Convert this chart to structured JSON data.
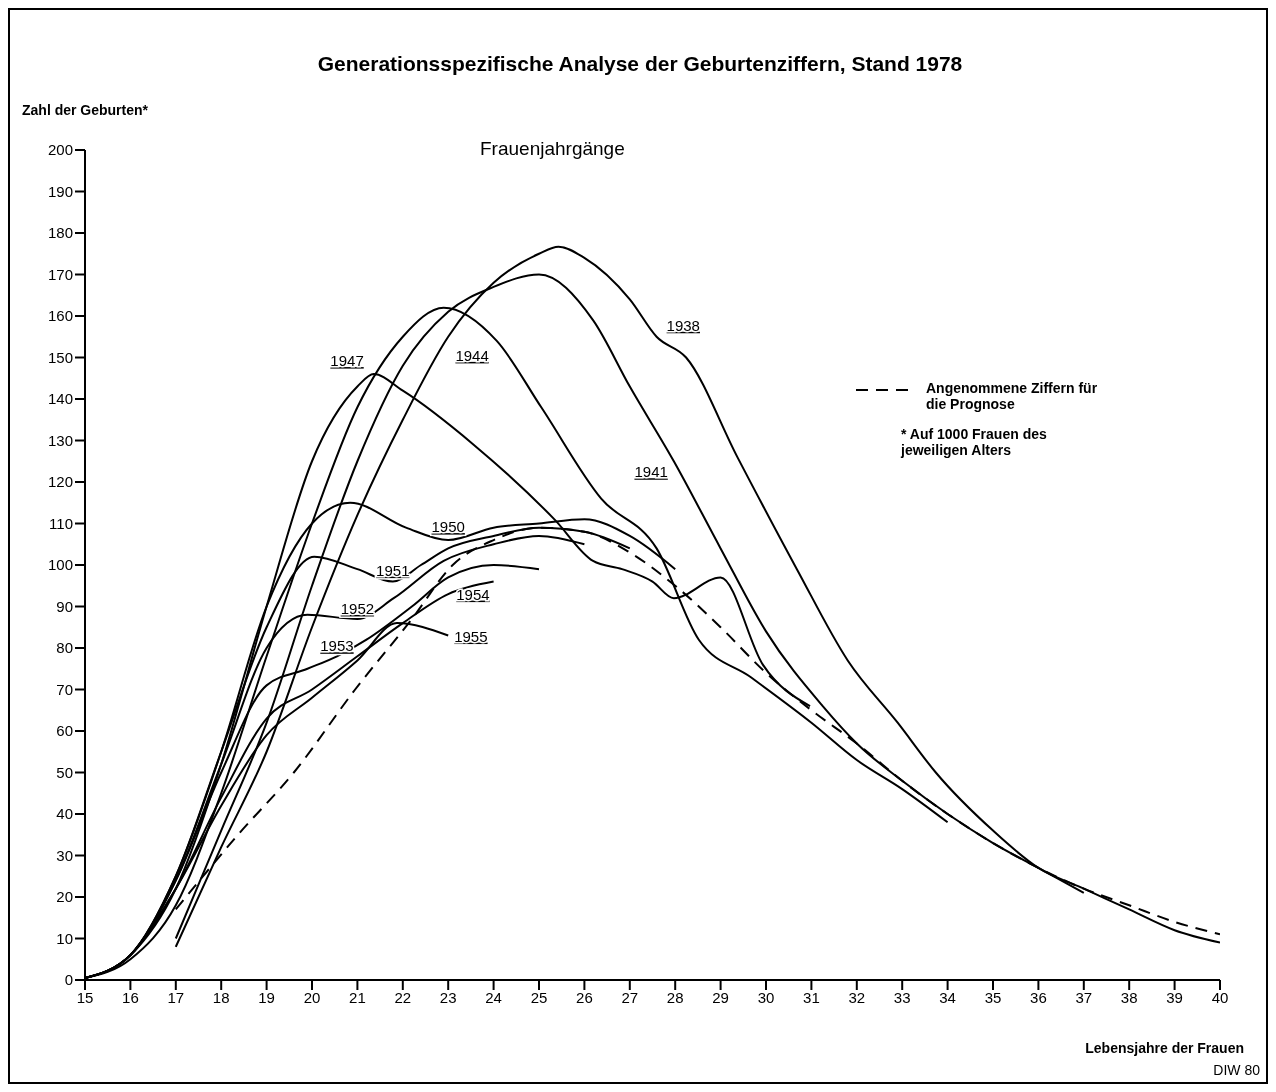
{
  "chart_data": {
    "type": "line",
    "title": "Generationsspezifische Analyse der Geburtenziffern, Stand 1978",
    "ylabel": "Zahl der Geburten*",
    "xlabel": "Lebensjahre der Frauen",
    "legend_title": "Frauenjahrgänge",
    "legend": "top right",
    "line_style": "solid",
    "marker": "none",
    "grid": false,
    "xlim": [
      15,
      40
    ],
    "xticks": [
      15,
      16,
      17,
      18,
      19,
      20,
      21,
      22,
      23,
      24,
      25,
      26,
      27,
      28,
      29,
      30,
      31,
      32,
      33,
      34,
      35,
      36,
      37,
      38,
      39,
      40
    ],
    "ylim": [
      0,
      200
    ],
    "yticks": [
      0,
      10,
      20,
      30,
      40,
      50,
      60,
      70,
      80,
      90,
      100,
      110,
      120,
      130,
      140,
      150,
      160,
      170,
      180,
      190,
      200
    ],
    "series": [
      {
        "name": "1938",
        "color": "#000000",
        "x": [
          17,
          18,
          19,
          20,
          21,
          22,
          23,
          24,
          25,
          25.43,
          26,
          27,
          27.59,
          28.24,
          29.37,
          30.68,
          31.8,
          32.9,
          33.74,
          35,
          36,
          37,
          38,
          39,
          40
        ],
        "values": [
          8,
          32,
          55,
          85,
          112,
          135,
          155,
          168,
          175,
          176.7,
          174,
          164,
          155,
          150,
          126,
          99,
          77,
          62,
          50,
          36,
          27,
          22,
          17,
          12,
          9
        ]
      },
      {
        "name": "1941",
        "color": "#000000",
        "x": [
          17,
          18,
          19,
          20,
          21,
          22,
          23,
          24,
          25,
          26.19,
          27,
          27.97,
          29,
          30,
          31.25,
          32,
          33,
          34,
          35,
          36,
          37
        ],
        "values": [
          10,
          36,
          62,
          95,
          125,
          148,
          161,
          167,
          170,
          159,
          143,
          125,
          104,
          84,
          66,
          57,
          48,
          40,
          33,
          27,
          21
        ]
      },
      {
        "name": "1944",
        "color": "#000000",
        "x": [
          15,
          16,
          17,
          18,
          19,
          20,
          21,
          22,
          22.9,
          24.07,
          25.05,
          26.37,
          27.59,
          28.52,
          29.66,
          31,
          32,
          33,
          34
        ],
        "values": [
          0.5,
          5,
          18,
          45,
          78,
          110,
          138,
          155,
          162,
          154,
          138,
          116,
          104,
          82,
          73,
          62,
          53,
          46,
          38
        ]
      },
      {
        "name": "1947",
        "color": "#000000",
        "x": [
          15,
          16,
          17,
          18,
          19,
          20,
          21,
          21.36,
          22,
          23.56,
          25.34,
          26.19,
          26.83,
          27.5,
          27.97,
          29,
          29.93,
          30.97
        ],
        "values": [
          0.5,
          6,
          22,
          52,
          90,
          125,
          143,
          146,
          142,
          129,
          111,
          101,
          99,
          96,
          92,
          97,
          76,
          66
        ]
      },
      {
        "name": "1950",
        "color": "#000000",
        "x": [
          15,
          16,
          17,
          18,
          19,
          20,
          20.84,
          22.07,
          23,
          24,
          25,
          26,
          27,
          28
        ],
        "values": [
          0.5,
          6,
          25,
          55,
          90,
          110,
          115,
          109,
          106,
          109,
          110,
          111,
          107,
          99
        ]
      },
      {
        "name": "1951",
        "color": "#000000",
        "x": [
          15,
          16,
          17,
          18,
          19,
          20.05,
          21,
          21.78,
          22.4,
          23,
          24,
          25,
          26,
          27
        ],
        "values": [
          0.5,
          6,
          25,
          55,
          85,
          102,
          99,
          96,
          100,
          104,
          107,
          109,
          108,
          104
        ]
      },
      {
        "name": "1952",
        "color": "#000000",
        "x": [
          15,
          16,
          17,
          18,
          19,
          19.9,
          21,
          21.8,
          22.9,
          24,
          25,
          26
        ],
        "values": [
          0.5,
          6,
          24,
          52,
          80,
          88,
          87,
          92,
          101,
          105,
          107,
          105
        ]
      },
      {
        "name": "1953",
        "color": "#000000",
        "x": [
          15,
          16,
          17,
          18,
          19,
          19.9,
          20.55,
          21.2,
          22.2,
          23,
          24,
          25
        ],
        "values": [
          0.5,
          6,
          24,
          50,
          71,
          75,
          78,
          82,
          90,
          97,
          100,
          99
        ]
      },
      {
        "name": "1954",
        "color": "#000000",
        "x": [
          15,
          16,
          17,
          18,
          19,
          20,
          21,
          22,
          23,
          24
        ],
        "values": [
          0.5,
          6,
          22,
          44,
          63,
          70,
          78,
          86,
          93,
          96
        ]
      },
      {
        "name": "1955",
        "color": "#000000",
        "x": [
          15,
          16,
          17,
          18,
          19,
          20,
          21,
          21.87,
          23
        ],
        "values": [
          0.5,
          6,
          22,
          42,
          59,
          68,
          77,
          86,
          83
        ]
      },
      {
        "name": "Angenommene Ziffern für die Prognose",
        "color": "#000000",
        "line_style": "dashed",
        "x": [
          17,
          18.37,
          19.6,
          20.95,
          22.2,
          23.1,
          24,
          25,
          26,
          27,
          28,
          29,
          30,
          31,
          32,
          33,
          34,
          35,
          36,
          37,
          38,
          39,
          40
        ],
        "values": [
          17,
          35,
          50,
          70,
          87,
          100,
          106,
          109,
          108,
          103,
          95,
          85,
          74,
          65,
          57,
          48,
          40,
          33,
          27,
          22,
          18,
          14,
          11
        ]
      }
    ],
    "annotations": [
      "* Auf 1000 Frauen des jeweiligen Alters",
      "DIW 80"
    ]
  }
}
